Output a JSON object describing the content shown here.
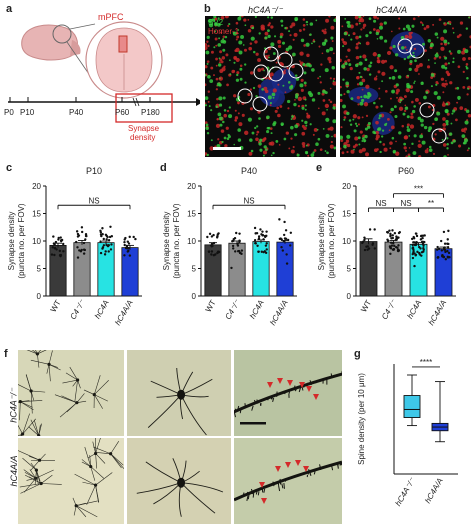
{
  "panels": {
    "a": {
      "letter": "a",
      "region": "mPFC",
      "timeline": [
        "P0",
        "P10",
        "P40",
        "P60",
        "P180"
      ],
      "box_label": "Synapse\ndensity",
      "box_line1": "Synapse",
      "box_line2": "density"
    },
    "b": {
      "letter": "b",
      "title_left": "hC4A⁻/⁻",
      "title_right": "hC4A/A",
      "legend_sv2": "SV2",
      "legend_homer": "Homer-1"
    },
    "c": {
      "letter": "c"
    },
    "d": {
      "letter": "d"
    },
    "e": {
      "letter": "e"
    },
    "f": {
      "letter": "f",
      "row1": "hC4A⁻/⁻",
      "row2": "hC4A/A"
    },
    "g": {
      "letter": "g"
    }
  },
  "colors": {
    "wt": "#3a3a3a",
    "c4ko": "#8c8c8c",
    "hc4a": "#27e3e3",
    "hc4aa": "#1f3fd6",
    "red": "#d42a2a",
    "box_g1": "#3ec8e8",
    "box_g2": "#1f3fd6"
  },
  "chart_data": [
    {
      "id": "c",
      "type": "bar",
      "title": "P10",
      "ylabel": "Synapse density (puncta no. per FOV)",
      "ylabel_line1": "Synapse density",
      "ylabel_line2": "(puncta no. per FOV)",
      "categories": [
        "WT",
        "C4⁻/⁻",
        "hC4A",
        "hC4A/A"
      ],
      "values": [
        9.2,
        9.7,
        9.7,
        8.8
      ],
      "errors": [
        0.4,
        0.4,
        0.3,
        0.4
      ],
      "ylim": [
        0,
        20
      ],
      "yticks": [
        "0",
        "5",
        "10",
        "15",
        "20"
      ],
      "annotations": [
        {
          "text": "NS",
          "from": 0,
          "to": 3,
          "level": 16.5
        }
      ]
    },
    {
      "id": "d",
      "type": "bar",
      "title": "P40",
      "ylabel": "Synapse density (puncta no. per FOV)",
      "ylabel_line1": "Synapse density",
      "ylabel_line2": "(puncta no. per FOV)",
      "categories": [
        "WT",
        "C4⁻/⁻",
        "hC4A",
        "hC4A/A"
      ],
      "values": [
        9.3,
        9.6,
        9.9,
        9.8
      ],
      "errors": [
        0.4,
        0.4,
        0.3,
        0.3
      ],
      "ylim": [
        0,
        20
      ],
      "yticks": [
        "0",
        "5",
        "10",
        "15",
        "20"
      ],
      "annotations": [
        {
          "text": "NS",
          "from": 0,
          "to": 3,
          "level": 16.5
        }
      ]
    },
    {
      "id": "e",
      "type": "bar",
      "title": "P60",
      "ylabel": "Synapse density (puncta no. per FOV)",
      "ylabel_line1": "Synapse density",
      "ylabel_line2": "(puncta no. per FOV)",
      "categories": [
        "WT",
        "C4⁻/⁻",
        "hC4A",
        "hC4A/A"
      ],
      "values": [
        9.9,
        9.8,
        9.4,
        8.6
      ],
      "errors": [
        0.5,
        0.3,
        0.3,
        0.3
      ],
      "ylim": [
        0,
        20
      ],
      "yticks": [
        "0",
        "5",
        "10",
        "15",
        "20"
      ],
      "annotations": [
        {
          "text": "NS",
          "from": 0,
          "to": 1,
          "level": 16.0
        },
        {
          "text": "NS",
          "from": 1,
          "to": 2,
          "level": 16.0
        },
        {
          "text": "***",
          "from": 1,
          "to": 3,
          "level": 18.6
        },
        {
          "text": "**",
          "from": 2,
          "to": 3,
          "level": 16.0
        }
      ]
    },
    {
      "id": "g",
      "type": "box",
      "ylabel": "Spine density (per 10 μm)",
      "categories": [
        "hC4A⁻/⁻",
        "hC4A/A"
      ],
      "boxes": [
        {
          "min": 6.6,
          "q1": 7.7,
          "median": 8.8,
          "q3": 10.7,
          "max": 13.5
        },
        {
          "min": 4.4,
          "q1": 5.9,
          "median": 6.4,
          "q3": 6.9,
          "max": 12.6
        }
      ],
      "ylim": [
        0,
        15
      ],
      "annotations": [
        {
          "text": "****",
          "from": 0,
          "to": 1,
          "level": 14.6
        }
      ]
    }
  ]
}
